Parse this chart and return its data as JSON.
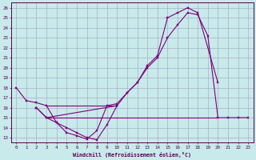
{
  "xlabel": "Windchill (Refroidissement éolien,°C)",
  "line_color": "#7b007b",
  "bg_color": "#c8eaea",
  "grid_color": "#a0a0c0",
  "xlim": [
    -0.5,
    23.5
  ],
  "ylim": [
    12.5,
    26.5
  ],
  "curves": [
    {
      "x": [
        0,
        1,
        2,
        3,
        4,
        5,
        6,
        7,
        8,
        9,
        10,
        11,
        12,
        13,
        14,
        15,
        16,
        17,
        18,
        20
      ],
      "y": [
        18,
        16.7,
        16.5,
        16.2,
        14.5,
        13.5,
        13.2,
        12.85,
        13.7,
        16.2,
        16.4,
        17.5,
        18.5,
        20.2,
        21.2,
        25.0,
        25.5,
        26.0,
        25.5,
        18.5
      ]
    },
    {
      "x": [
        2,
        3,
        4,
        5,
        6,
        7,
        8,
        9,
        10
      ],
      "y": [
        16.0,
        15.0,
        14.5,
        14.0,
        13.5,
        13.0,
        12.8,
        14.3,
        16.2
      ]
    },
    {
      "x": [
        2,
        3,
        10,
        11,
        12,
        13,
        14,
        15,
        16,
        17,
        18,
        19,
        20,
        21,
        22,
        23
      ],
      "y": [
        16.0,
        15.0,
        16.2,
        17.5,
        18.5,
        20.0,
        21.0,
        23.0,
        24.3,
        25.5,
        25.3,
        23.2,
        15.0,
        15.0,
        15.0,
        15.0
      ]
    },
    {
      "x": [
        3,
        10
      ],
      "y": [
        16.2,
        16.2
      ]
    },
    {
      "x": [
        3,
        20
      ],
      "y": [
        15.0,
        15.0
      ]
    }
  ]
}
